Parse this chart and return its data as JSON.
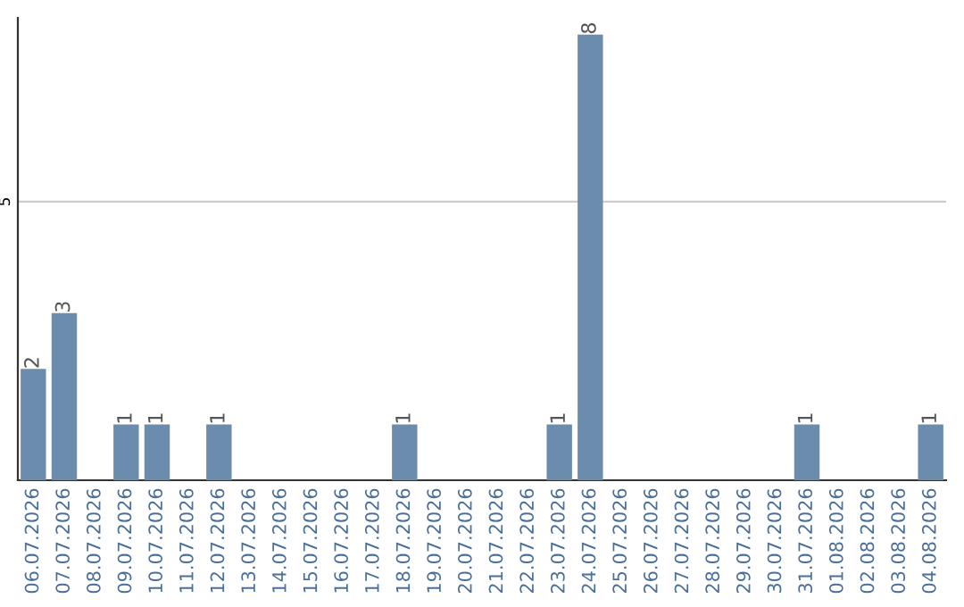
{
  "chart_data": {
    "type": "bar",
    "categories": [
      "06.07.2026",
      "07.07.2026",
      "08.07.2026",
      "09.07.2026",
      "10.07.2026",
      "11.07.2026",
      "12.07.2026",
      "13.07.2026",
      "14.07.2026",
      "15.07.2026",
      "16.07.2026",
      "17.07.2026",
      "18.07.2026",
      "19.07.2026",
      "20.07.2026",
      "21.07.2026",
      "22.07.2026",
      "23.07.2026",
      "24.07.2026",
      "25.07.2026",
      "26.07.2026",
      "27.07.2026",
      "28.07.2026",
      "29.07.2026",
      "30.07.2026",
      "31.07.2026",
      "01.08.2026",
      "02.08.2026",
      "03.08.2026",
      "04.08.2026"
    ],
    "values": [
      2,
      3,
      0,
      1,
      1,
      0,
      1,
      0,
      0,
      0,
      0,
      0,
      1,
      0,
      0,
      0,
      0,
      1,
      8,
      0,
      0,
      0,
      0,
      0,
      0,
      1,
      0,
      0,
      0,
      1
    ],
    "value_labels": [
      "2",
      "3",
      null,
      "1",
      "1",
      null,
      "1",
      null,
      null,
      null,
      null,
      null,
      "1",
      null,
      null,
      null,
      null,
      "1",
      "8",
      null,
      null,
      null,
      null,
      null,
      null,
      "1",
      null,
      null,
      null,
      "1"
    ],
    "color": "#6b8cad",
    "ylim": [
      0,
      8.3
    ],
    "yticks": [
      5
    ],
    "grid": "y"
  }
}
